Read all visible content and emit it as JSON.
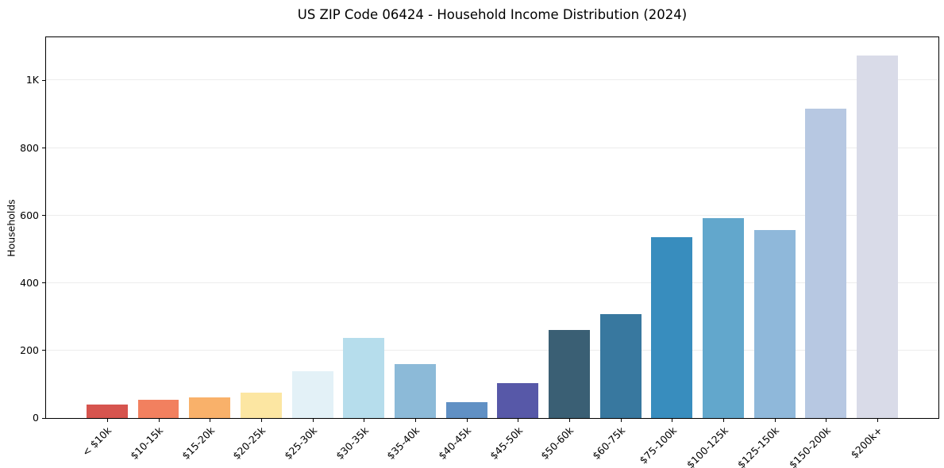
{
  "title": "US ZIP Code 06424 - Household Income Distribution (2024)",
  "chart_data": {
    "type": "bar",
    "title": "US ZIP Code 06424 - Household Income Distribution (2024)",
    "xlabel": "",
    "ylabel": "Households",
    "ylim": [
      0,
      1128
    ],
    "grid": "horizontal",
    "legend": "none",
    "xtick_rotation": 45,
    "categories": [
      "< $10k",
      "$10-15k",
      "$15-20k",
      "$20-25k",
      "$25-30k",
      "$30-35k",
      "$35-40k",
      "$40-45k",
      "$45-50k",
      "$50-60k",
      "$60-75k",
      "$75-100k",
      "$100-125k",
      "$125-150k",
      "$150-200k",
      "$200k+"
    ],
    "values": [
      40,
      53,
      60,
      75,
      139,
      237,
      161,
      48,
      103,
      260,
      307,
      535,
      592,
      556,
      916,
      1074
    ],
    "bar_colors": [
      "#d6544e",
      "#f2805f",
      "#f9b16a",
      "#fce6a2",
      "#e3f1f7",
      "#b6ddec",
      "#8cbad8",
      "#6090c4",
      "#5758a8",
      "#3a5f74",
      "#38789f",
      "#388dbe",
      "#62a7cc",
      "#8fb8da",
      "#b7c8e2",
      "#d9dbe8"
    ],
    "yticks": {
      "values": [
        0,
        200,
        400,
        600,
        800,
        1000
      ],
      "labels": [
        "0",
        "200",
        "400",
        "600",
        "800",
        "1K"
      ]
    }
  },
  "colors": {
    "background": "#ffffff",
    "gridline": "#ececec",
    "spine": "#000000",
    "text": "#000000"
  }
}
